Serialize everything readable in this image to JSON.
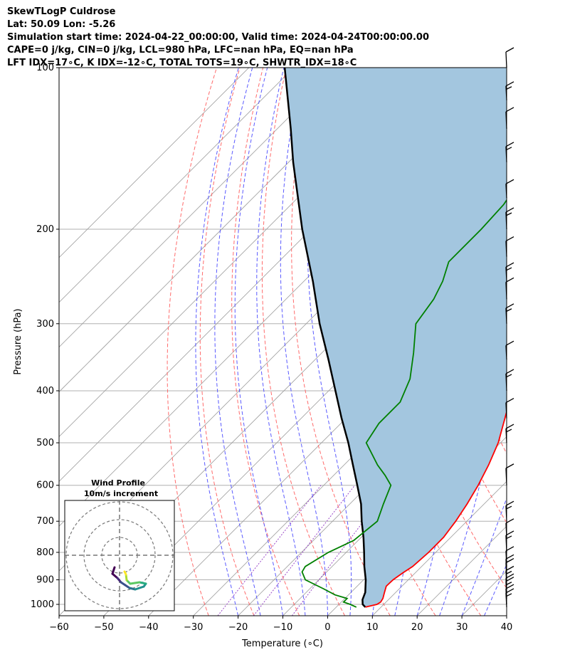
{
  "header": {
    "title": "SkewTLogP Culdrose",
    "latlon": "Lat: 50.09   Lon: -5.26",
    "times": "Simulation start time: 2024-04-22_00:00:00, Valid time: 2024-04-24T00:00:00.00",
    "cape": "CAPE=0 j/kg, CIN=0 j/kg, LCL=980 hPa, LFC=nan hPa, EQ=nan hPa",
    "indices": "LFT IDX=17∘C, K IDX=-12∘C, TOTAL TOTS=19∘C, SHWTR_IDX=18∘C"
  },
  "hodograph": {
    "title": "Wind Profile",
    "subtitle": "10m/s increment"
  },
  "chart_data": {
    "type": "line",
    "subtype": "skew-T log-P diagram",
    "xlabel": "Temperature (∘C)",
    "ylabel": "Pressure (hPa)",
    "xlim": [
      -60,
      40
    ],
    "ylim": [
      1050,
      100
    ],
    "y_scale": "log",
    "x_ticks": [
      "−60",
      "−50",
      "−40",
      "−30",
      "−20",
      "−10",
      "0",
      "10",
      "20",
      "30",
      "40"
    ],
    "y_ticks": [
      "100",
      "200",
      "300",
      "400",
      "500",
      "600",
      "700",
      "800",
      "900",
      "1000"
    ],
    "grid": true,
    "colors": {
      "temperature": "#ff0000",
      "dewpoint": "#008000",
      "parcel": "#000000",
      "shade": "#a3c6df",
      "dry_adiabat": "#ff6b6b",
      "moist_adiabat": "#5a5aff",
      "mixing_ratio": "#9a48c8"
    },
    "series": [
      {
        "key": "temperature",
        "p": [
          1012,
          1000,
          990,
          975,
          950,
          925,
          900,
          875,
          850,
          800,
          750,
          700,
          650,
          600,
          550,
          500,
          450,
          400,
          350,
          300,
          250,
          230,
          210,
          190,
          170,
          150,
          140,
          125,
          115,
          105,
          100
        ],
        "t": [
          6.5,
          8.5,
          8.8,
          8.5,
          7.5,
          6.5,
          6.6,
          7.2,
          8.0,
          8.4,
          8.4,
          7.5,
          6.2,
          4.5,
          2.3,
          -0.5,
          -4.5,
          -9.0,
          -14.5,
          -20.5,
          -27.0,
          -29.5,
          -30.5,
          -28.5,
          -22.0,
          -14.0,
          -10.5,
          -7.0,
          -6.5,
          -4.5,
          -2.5
        ]
      },
      {
        "key": "dewpoint",
        "p": [
          1012,
          1000,
          990,
          975,
          960,
          935,
          900,
          870,
          850,
          800,
          760,
          700,
          650,
          600,
          575,
          550,
          500,
          460,
          420,
          380,
          340,
          300,
          270,
          250,
          230,
          200,
          180,
          160,
          150,
          140,
          120,
          100
        ],
        "t": [
          4.5,
          2.5,
          0.5,
          0.5,
          -3.0,
          -7.0,
          -13.0,
          -15.5,
          -16.0,
          -14.0,
          -11.0,
          -10.0,
          -12.5,
          -15.0,
          -18.5,
          -22.5,
          -30.0,
          -31.5,
          -31.5,
          -34.5,
          -39.5,
          -45.5,
          -47.0,
          -49.0,
          -52.0,
          -52.0,
          -52.5,
          -54.5,
          -58.5,
          -64.0,
          -66.5,
          -66.5
        ]
      },
      {
        "key": "parcel",
        "p": [
          1012,
          1000,
          980,
          950,
          900,
          850,
          800,
          750,
          700,
          650,
          600,
          550,
          500,
          450,
          400,
          350,
          300,
          250,
          200,
          150,
          130,
          100
        ],
        "t": [
          6.5,
          5.3,
          4.2,
          3.2,
          0.5,
          -2.8,
          -6.0,
          -9.5,
          -13.5,
          -17.5,
          -22.5,
          -28.0,
          -34.0,
          -41.0,
          -48.5,
          -57.0,
          -67.0,
          -78.0,
          -92.0,
          -109.0,
          -117.0,
          -132.0
        ]
      }
    ],
    "wind_barbs_p": [
      1012,
      1000,
      975,
      950,
      925,
      900,
      875,
      850,
      800,
      750,
      700,
      600,
      500,
      450,
      400,
      350,
      300,
      270,
      250,
      225,
      200,
      175,
      150,
      130,
      115,
      100
    ],
    "hodograph_rings": [
      10,
      20,
      30
    ]
  }
}
